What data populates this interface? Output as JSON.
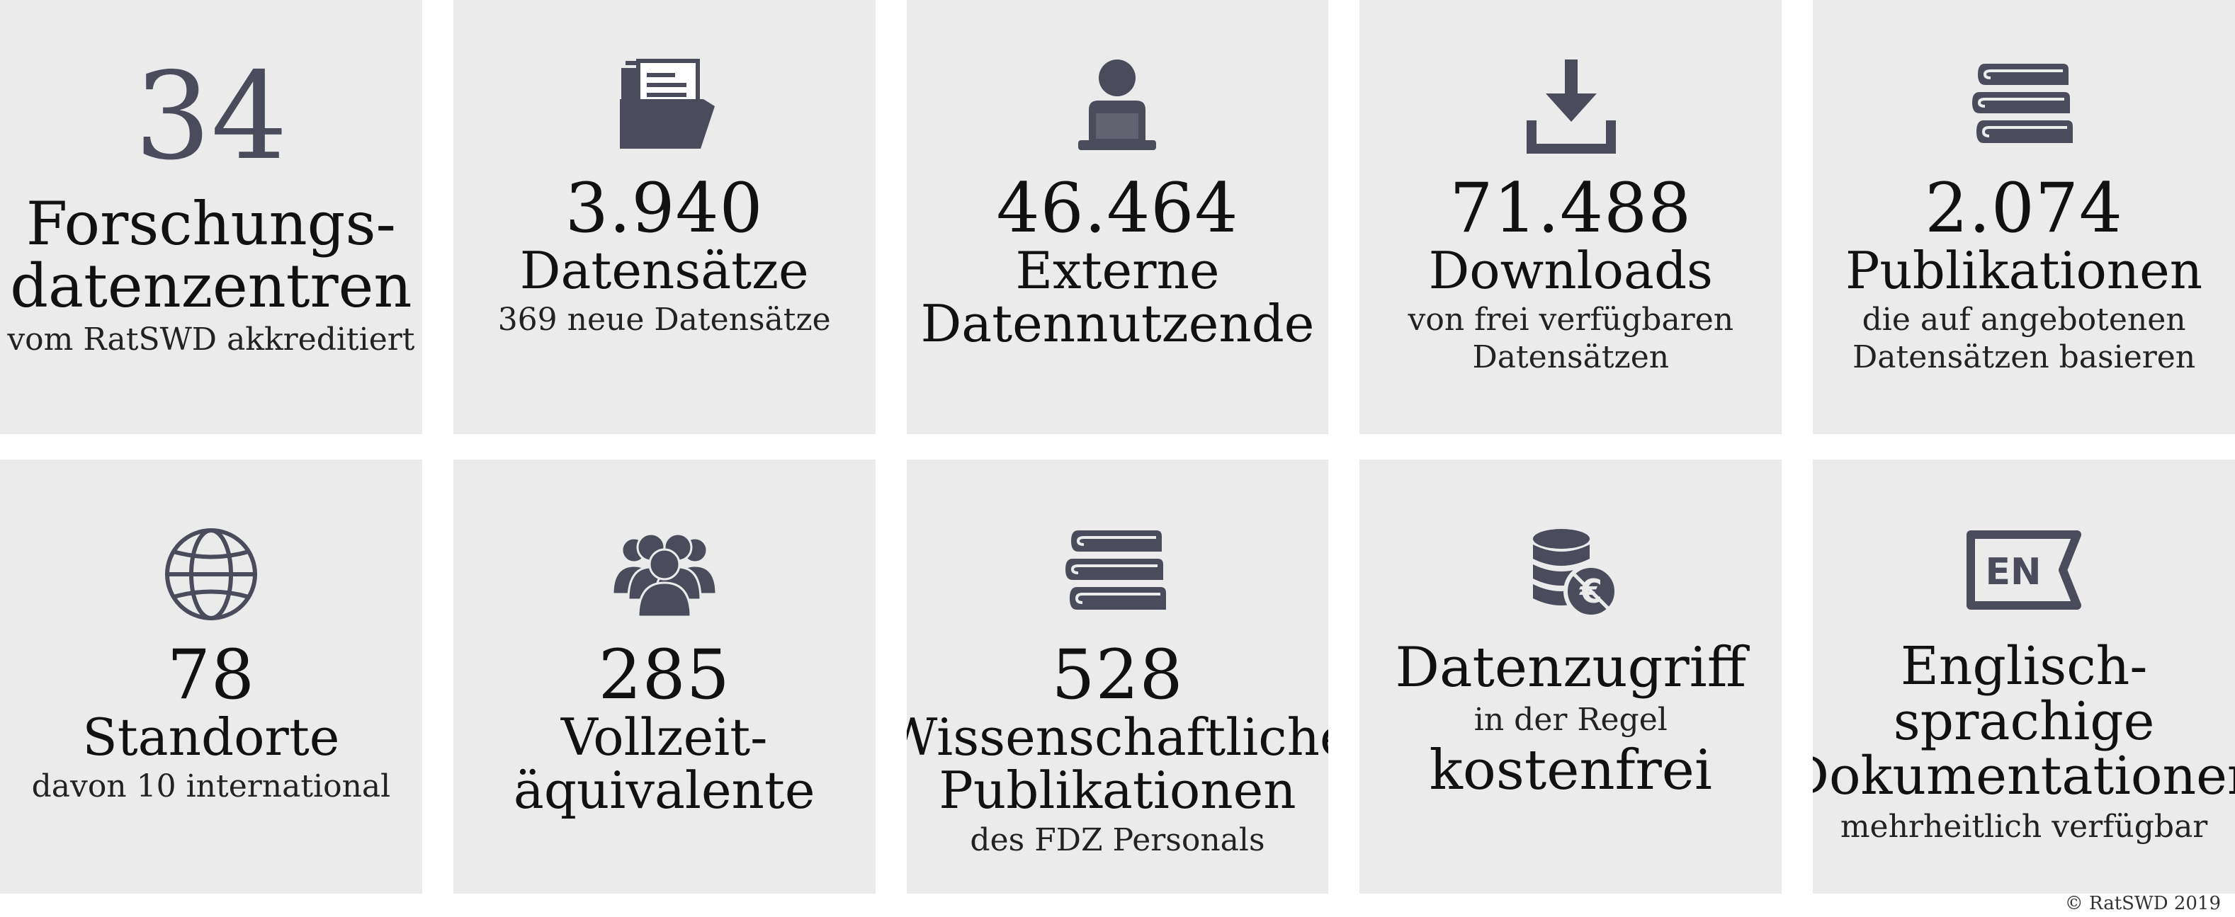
{
  "tiles": [
    {
      "number": "34",
      "title": "Forschungs-\ndatenzentren",
      "subtitle": "vom RatSWD akkreditiert"
    },
    {
      "number": "3.940",
      "title": "Datensätze",
      "subtitle": "369 neue Datensätze"
    },
    {
      "number": "46.464",
      "title": "Externe\nDatennutzende",
      "subtitle": ""
    },
    {
      "number": "71.488",
      "title": "Downloads",
      "subtitle": "von frei verfügbaren\nDatensätzen"
    },
    {
      "number": "2.074",
      "title": "Publikationen",
      "subtitle": "die auf angebotenen\nDatensätzen basieren"
    },
    {
      "number": "78",
      "title": "Standorte",
      "subtitle": "davon 10 international"
    },
    {
      "number": "285",
      "title": "Vollzeit-\näquivalente",
      "subtitle": ""
    },
    {
      "number": "528",
      "title": "Wissenschaftliche\nPublikationen",
      "subtitle": "des FDZ Personals"
    },
    {
      "title": "Datenzugriff",
      "subtitle": "in der Regel",
      "emphasis": "kostenfrei"
    },
    {
      "title": "Englisch-\nsprachige\nDokumentationen",
      "subtitle": "mehrheitlich verfügbar",
      "icon_text": "EN"
    }
  ],
  "icons": [
    "folder-icon",
    "user-computer-icon",
    "download-icon",
    "books-icon",
    "globe-icon",
    "group-icon",
    "books-icon",
    "coins-euro-icon",
    "en-flag-icon"
  ],
  "colors": {
    "tile": "#ebebec",
    "icon": "#4a4c5c",
    "text": "#111111"
  },
  "copyright": "© RatSWD 2019"
}
